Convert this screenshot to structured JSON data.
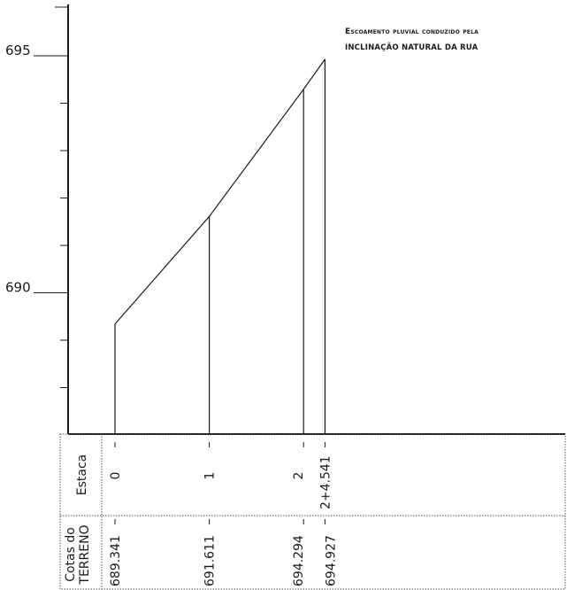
{
  "annotation": {
    "line1": "Escoamento pluvial conduzido pela",
    "line2": "inclinação natural da rua"
  },
  "table": {
    "row1_label": "Estaca",
    "row2_label_line1": "Cotas do",
    "row2_label_line2": "TERRENO"
  },
  "colors": {
    "ink": "#1a1a1a",
    "grid": "#555555"
  },
  "chart_data": {
    "type": "line",
    "y_axis": {
      "labeled_ticks": [
        {
          "value": 695,
          "label": "695"
        },
        {
          "value": 690,
          "label": "690"
        }
      ],
      "tick_step": 1,
      "ylim": [
        687,
        696
      ]
    },
    "stations": [
      {
        "estaca": "0",
        "distance": 0,
        "cota": 689.341,
        "cota_label": "689.341"
      },
      {
        "estaca": "1",
        "distance": 20,
        "cota": 691.611,
        "cota_label": "691.611"
      },
      {
        "estaca": "2",
        "distance": 40,
        "cota": 694.294,
        "cota_label": "694.294"
      },
      {
        "estaca": "2+4.541",
        "distance": 44.541,
        "cota": 694.927,
        "cota_label": "694.927"
      }
    ]
  }
}
